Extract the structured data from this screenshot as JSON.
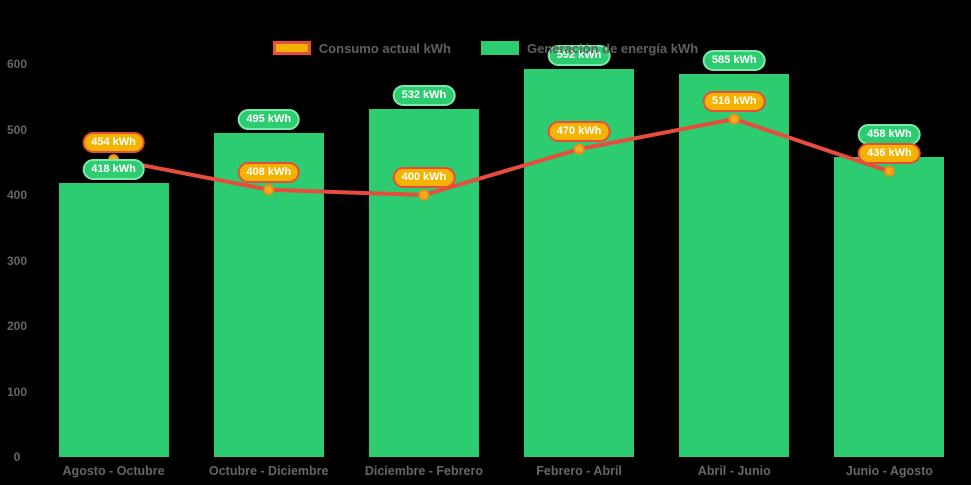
{
  "unit": "kWh",
  "colors": {
    "background": "#000000",
    "bar_fill": "#2ecc71",
    "bar_badge_fill": "#2ecc71",
    "bar_badge_border": "#7de8ab",
    "line_stroke": "#e74c3c",
    "point_fill": "#f8ab1c",
    "point_border": "#ef8c15",
    "consumption_badge_fill": "#f5b301",
    "consumption_badge_border": "#e74c3c",
    "axis_text": "#666666",
    "legend_text": "#606060",
    "badge_text": "#ffffff"
  },
  "legend": {
    "items": [
      {
        "label": "Consumo actual kWh",
        "swatch": "red-bordered-gold"
      },
      {
        "label": "Generación de energía kWh",
        "swatch": "green"
      }
    ]
  },
  "chart_data": {
    "type": "bar",
    "subtype": "bar-with-line-overlay",
    "categories": [
      "Agosto - Octubre",
      "Octubre - Diciembre",
      "Diciembre - Febrero",
      "Febrero - Abril",
      "Abril - Junio",
      "Junio - Agosto"
    ],
    "series": [
      {
        "name": "Generación de energía kWh",
        "type": "bar",
        "color": "#2ecc71",
        "values": [
          418,
          495,
          532,
          592,
          585,
          458
        ],
        "data_labels": [
          "418 kWh",
          "495 kWh",
          "532 kWh",
          "592 kWh",
          "585 kWh",
          "458 kWh"
        ]
      },
      {
        "name": "Consumo actual kWh",
        "type": "line",
        "color": "#e74c3c",
        "point_color": "#f8ab1c",
        "values": [
          454,
          408,
          400,
          470,
          516,
          436
        ],
        "data_labels": [
          "454 kWh",
          "408 kWh",
          "400 kWh",
          "470 kWh",
          "516 kWh",
          "436 kWh"
        ]
      }
    ],
    "title": "",
    "xlabel": "",
    "ylabel": "",
    "ylim": [
      0,
      600
    ],
    "yticks": [
      0,
      100,
      200,
      300,
      400,
      500,
      600
    ],
    "grid": false,
    "legend_position": "top",
    "background": "#000000"
  }
}
